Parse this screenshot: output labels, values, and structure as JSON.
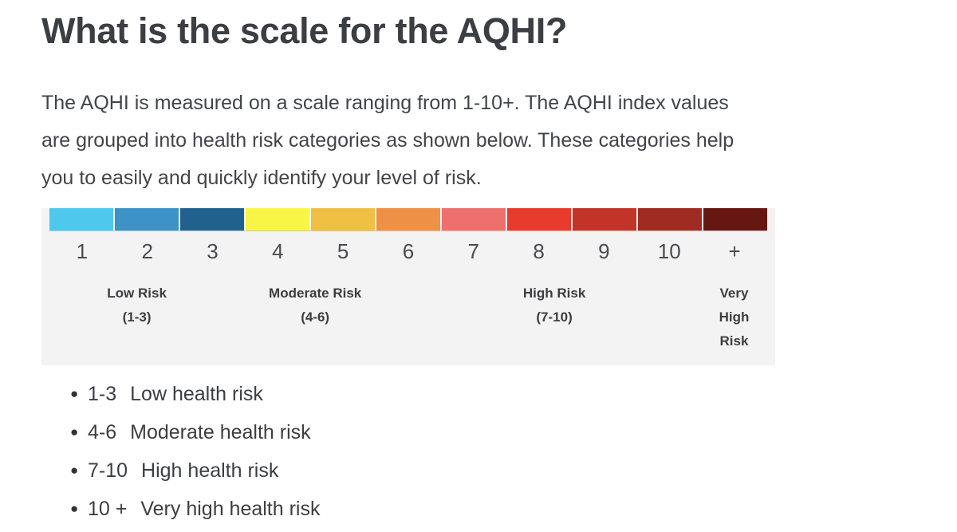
{
  "page": {
    "background": "#ffffff"
  },
  "heading": {
    "text": "What is the scale for the AQHI?"
  },
  "intro": {
    "lines": [
      "The AQHI is measured on a scale ranging from 1-10+. The AQHI index values",
      "are grouped into health risk categories as shown below. These categories help",
      "you to easily and quickly identify your level of risk."
    ]
  },
  "scale": {
    "panel_background": "#f3f3f4",
    "swatches": [
      {
        "value": "1",
        "color": "#4fc8ee"
      },
      {
        "value": "2",
        "color": "#3d92c6"
      },
      {
        "value": "3",
        "color": "#21618e"
      },
      {
        "value": "4",
        "color": "#f8f546"
      },
      {
        "value": "5",
        "color": "#efc044"
      },
      {
        "value": "6",
        "color": "#ee9146"
      },
      {
        "value": "7",
        "color": "#ed706d"
      },
      {
        "value": "8",
        "color": "#e63b2d"
      },
      {
        "value": "9",
        "color": "#c33428"
      },
      {
        "value": "10",
        "color": "#a02b22"
      },
      {
        "value": "+",
        "color": "#661712"
      }
    ],
    "categories": [
      {
        "label": "Low Risk",
        "range": "(1-3)",
        "center": "13%",
        "narrow": false
      },
      {
        "label": "Moderate Risk",
        "range": "(4-6)",
        "center": "37.3%",
        "narrow": false
      },
      {
        "label": "High Risk",
        "range": "(7-10)",
        "center": "69.9%",
        "narrow": false
      },
      {
        "label": "Very High Risk",
        "range": "",
        "center": "94.4%",
        "narrow": true
      }
    ]
  },
  "list": {
    "bullet": "●",
    "items": [
      {
        "range": "1-3",
        "label": "Low health risk"
      },
      {
        "range": "4-6",
        "label": "Moderate health risk"
      },
      {
        "range": "7-10",
        "label": "High health risk"
      },
      {
        "range": "10 +",
        "label": "Very high health risk"
      }
    ]
  }
}
